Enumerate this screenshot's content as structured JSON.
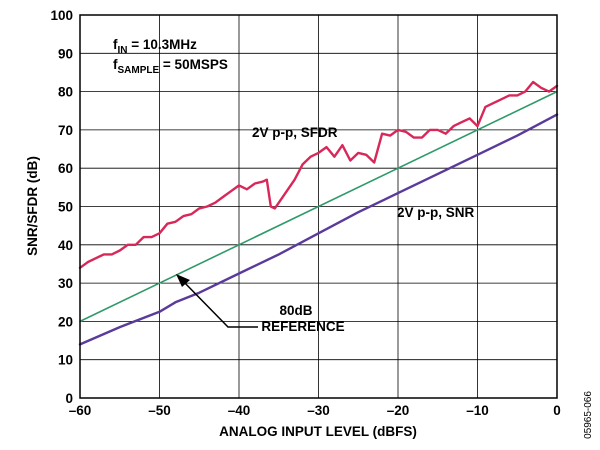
{
  "chart_data": {
    "type": "line",
    "xlabel": "ANALOG INPUT LEVEL (dBFS)",
    "ylabel": "SNR/SFDR (dB)",
    "xlim": [
      -60,
      0
    ],
    "ylim": [
      0,
      100
    ],
    "x_ticks": [
      -60,
      -50,
      -40,
      -30,
      -20,
      -10,
      0
    ],
    "x_tick_labels": [
      "–60",
      "–50",
      "–40",
      "–30",
      "–20",
      "–10",
      "0"
    ],
    "y_ticks": [
      0,
      10,
      20,
      30,
      40,
      50,
      60,
      70,
      80,
      90,
      100
    ],
    "y_tick_labels": [
      "0",
      "10",
      "20",
      "30",
      "40",
      "50",
      "60",
      "70",
      "80",
      "90",
      "100"
    ],
    "grid": true,
    "conditions": {
      "fin_base": "f",
      "fin_sub": "IN",
      "fin_value": " = 10.3MHz",
      "fs_base": "f",
      "fs_sub": "SAMPLE",
      "fs_value": " = 50MSPS"
    },
    "figure_id": "05965-066",
    "annotations": {
      "sfdr_label": "2V p-p, SFDR",
      "snr_label": "2V p-p, SNR",
      "ref_label_1": "80dB",
      "ref_label_2": "REFERENCE"
    },
    "series": [
      {
        "name": "2V p-p, SFDR",
        "color": "#d8285a",
        "x": [
          -60,
          -59,
          -58,
          -57,
          -56,
          -55,
          -54,
          -53,
          -52,
          -51,
          -50,
          -49,
          -48,
          -47,
          -46,
          -45,
          -44,
          -43,
          -42,
          -41,
          -40,
          -39,
          -38,
          -37,
          -36.5,
          -36,
          -35.5,
          -35,
          -34,
          -33,
          -32,
          -31,
          -30,
          -29,
          -28,
          -27,
          -26,
          -25,
          -24,
          -23,
          -22,
          -21,
          -20,
          -19,
          -18,
          -17,
          -16,
          -15,
          -14,
          -13,
          -12,
          -11,
          -10,
          -9,
          -8,
          -7,
          -6,
          -5,
          -4,
          -3,
          -2,
          -1,
          0
        ],
        "y": [
          34,
          35.5,
          36.5,
          37.5,
          37.5,
          38.5,
          40,
          40,
          42,
          42,
          43,
          45.5,
          46,
          47.5,
          48,
          49.5,
          50,
          51,
          52.5,
          54,
          55.5,
          54.5,
          56,
          56.5,
          57,
          50,
          49.5,
          51,
          54,
          57,
          61,
          63,
          64,
          65.5,
          63,
          66,
          62,
          64,
          63.5,
          61.5,
          69,
          68.5,
          70,
          69.5,
          68,
          68,
          70,
          70,
          69,
          71,
          72,
          73,
          71,
          76,
          77,
          78,
          79,
          79,
          80,
          82.5,
          81,
          80,
          81.5
        ]
      },
      {
        "name": "2V p-p, SNR",
        "color": "#5a3a9a",
        "x": [
          -60,
          -55,
          -50,
          -48,
          -45,
          -40,
          -35,
          -30,
          -25,
          -20,
          -15,
          -10,
          -5,
          0
        ],
        "y": [
          14,
          18.5,
          22.5,
          25,
          27.5,
          32.5,
          37.5,
          43,
          48.5,
          53.5,
          58.5,
          63.5,
          68.5,
          74
        ]
      },
      {
        "name": "80dB REFERENCE",
        "color": "#2e9a6a",
        "x": [
          -60,
          0
        ],
        "y": [
          20,
          80
        ]
      }
    ]
  }
}
